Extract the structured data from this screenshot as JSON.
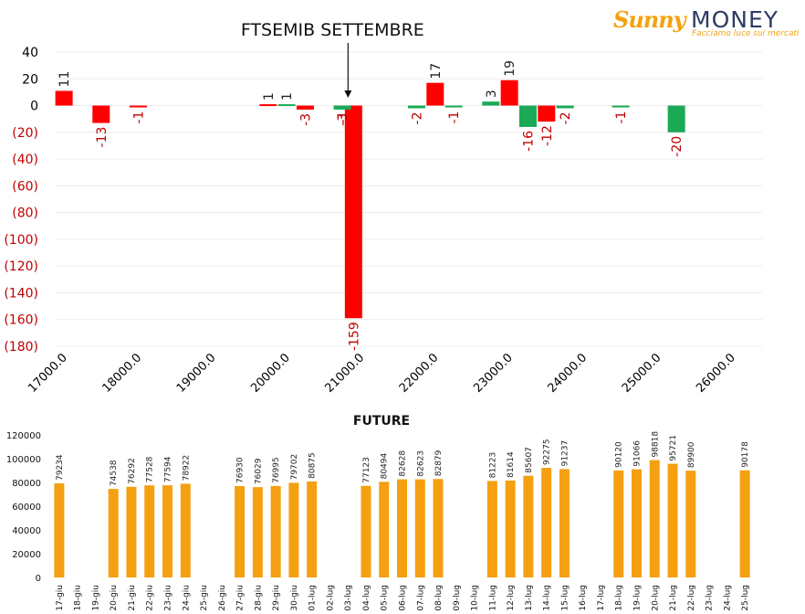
{
  "logo": {
    "brand_left": "Sunny",
    "brand_right": "MONEY",
    "tagline": "Facciamo luce sui mercati"
  },
  "colors": {
    "positive": "#ff0000",
    "negative": "#1aaa55",
    "future_bar": "#f5a011",
    "neg_tick": "#c00000",
    "axis_text": "#000000"
  },
  "chart_data": [
    {
      "type": "bar",
      "title": "FTSEMIB SETTEMBRE",
      "xlabel": "",
      "ylabel": "",
      "ylim": [
        -180,
        40
      ],
      "y_ticks": [
        40,
        20,
        0,
        -20,
        -40,
        -60,
        -80,
        -100,
        -120,
        -140,
        -160,
        -180
      ],
      "y_tick_labels": [
        "40",
        "20",
        "0",
        "(20)",
        "(40)",
        "(60)",
        "(80)",
        "(100)",
        "(120)",
        "(140)",
        "(160)",
        "(180)"
      ],
      "xlim": [
        17000,
        26000
      ],
      "x_ticks": [
        17000,
        18000,
        19000,
        20000,
        21000,
        22000,
        23000,
        24000,
        25000,
        26000
      ],
      "x_tick_labels": [
        "17000.0",
        "18000.0",
        "19000.0",
        "20000.0",
        "21000.0",
        "22000.0",
        "23000.0",
        "24000.0",
        "25000.0",
        "26000.0"
      ],
      "annotation_strike": 21000,
      "series": [
        {
          "color_key": "positive",
          "points": [
            {
              "x": 17100,
              "y": 11,
              "label": "11"
            },
            {
              "x": 17600,
              "y": -13,
              "label": "-13"
            },
            {
              "x": 18100,
              "y": -1,
              "label": "-1"
            },
            {
              "x": 19850,
              "y": 1,
              "label": "1"
            },
            {
              "x": 20350,
              "y": -3,
              "label": "-3"
            },
            {
              "x": 20850,
              "y": -1,
              "label": "-1"
            },
            {
              "x": 21000,
              "y": -159,
              "label": "-159"
            },
            {
              "x": 22100,
              "y": 17,
              "label": "17"
            },
            {
              "x": 23100,
              "y": 19,
              "label": "19"
            },
            {
              "x": 23600,
              "y": -12,
              "label": "-12"
            }
          ]
        },
        {
          "color_key": "negative",
          "points": [
            {
              "x": 20100,
              "y": 1,
              "label": "1"
            },
            {
              "x": 20850,
              "y": -3,
              "label": "-3"
            },
            {
              "x": 21850,
              "y": -2,
              "label": "-2"
            },
            {
              "x": 22350,
              "y": -1,
              "label": "-1"
            },
            {
              "x": 22850,
              "y": 3,
              "label": "3"
            },
            {
              "x": 23350,
              "y": -16,
              "label": "-16"
            },
            {
              "x": 23850,
              "y": -2,
              "label": "-2"
            },
            {
              "x": 24600,
              "y": -1,
              "label": "-1"
            },
            {
              "x": 25350,
              "y": -20,
              "label": "-20"
            }
          ]
        }
      ]
    },
    {
      "type": "bar",
      "title": "FUTURE",
      "xlabel": "",
      "ylabel": "",
      "ylim": [
        0,
        120000
      ],
      "y_ticks": [
        0,
        20000,
        40000,
        60000,
        80000,
        100000,
        120000
      ],
      "categories": [
        "17-giu",
        "18-giu",
        "19-giu",
        "20-giu",
        "21-giu",
        "22-giu",
        "23-giu",
        "24-giu",
        "25-giu",
        "26-giu",
        "27-giu",
        "28-giu",
        "29-giu",
        "30-giu",
        "01-lug",
        "02-lug",
        "03-lug",
        "04-lug",
        "05-lug",
        "06-lug",
        "07-lug",
        "08-lug",
        "09-lug",
        "10-lug",
        "11-lug",
        "12-lug",
        "13-lug",
        "14-lug",
        "15-lug",
        "16-lug",
        "17-lug",
        "18-lug",
        "19-lug",
        "20-lug",
        "21-lug",
        "22-lug",
        "23-lug",
        "24-lug",
        "25-lug"
      ],
      "values": [
        79234,
        null,
        null,
        74538,
        76292,
        77528,
        77594,
        78922,
        null,
        null,
        76930,
        76029,
        76995,
        79702,
        80875,
        null,
        null,
        77123,
        80494,
        82628,
        82623,
        82879,
        null,
        null,
        81223,
        81614,
        85607,
        92275,
        91237,
        null,
        null,
        90120,
        91066,
        98818,
        95721,
        89900,
        null,
        null,
        90178
      ]
    }
  ]
}
